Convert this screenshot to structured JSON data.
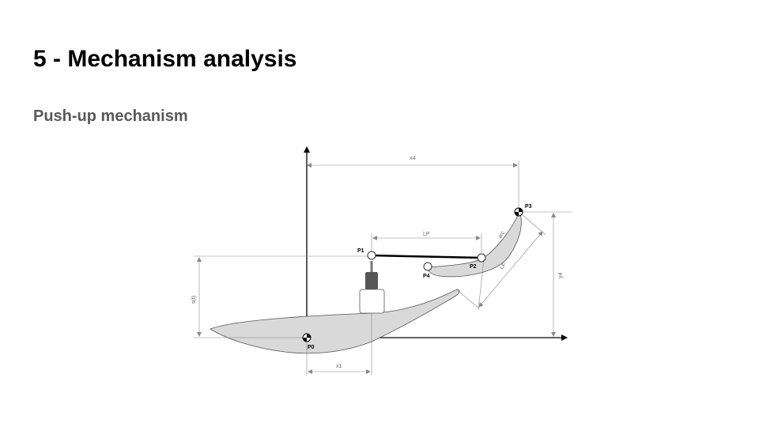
{
  "slide": {
    "title": "5 - Mechanism analysis",
    "subtitle": "Push-up mechanism"
  },
  "diagram": {
    "points": {
      "p0": "P0",
      "p1": "P1",
      "p2": "P2",
      "p3": "P3",
      "p4": "P4"
    },
    "dimensions": {
      "x4": "x4",
      "x1": "x1",
      "y4": "y4",
      "st": "s(t)",
      "lp": "LP",
      "lf": "LF",
      "arc": "arc"
    },
    "colors": {
      "shape_fill": "#d9d9d9",
      "shape_stroke": "#555555",
      "link": "#000000",
      "dim_line": "#888888",
      "actuator": "#555555"
    }
  }
}
